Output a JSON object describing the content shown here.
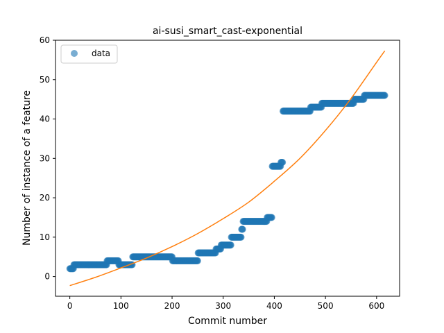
{
  "chart_data": {
    "type": "scatter",
    "title": "ai-susi_smart_cast-exponential",
    "xlabel": "Commit number",
    "ylabel": "Number of instance of a feature",
    "xlim": [
      -28,
      645
    ],
    "ylim": [
      -5,
      60
    ],
    "xticks": [
      0,
      100,
      200,
      300,
      400,
      500,
      600
    ],
    "yticks": [
      0,
      10,
      20,
      30,
      40,
      50,
      60
    ],
    "grid": false,
    "legend": {
      "placement": "top-left",
      "entries": [
        "data"
      ]
    },
    "colors": {
      "data": "#1f77b4",
      "fit": "#ff7f0e"
    },
    "series": [
      {
        "name": "data",
        "kind": "scatter",
        "segments": [
          {
            "x_start": 0,
            "x_end": 7,
            "y": 2
          },
          {
            "x_start": 8,
            "x_end": 72,
            "y": 3
          },
          {
            "x_start": 73,
            "x_end": 95,
            "y": 4
          },
          {
            "x_start": 96,
            "x_end": 122,
            "y": 3
          },
          {
            "x_start": 123,
            "x_end": 200,
            "y": 5
          },
          {
            "x_start": 201,
            "x_end": 250,
            "y": 4
          },
          {
            "x_start": 251,
            "x_end": 285,
            "y": 6
          },
          {
            "x_start": 286,
            "x_end": 295,
            "y": 7
          },
          {
            "x_start": 296,
            "x_end": 315,
            "y": 8
          },
          {
            "x_start": 316,
            "x_end": 335,
            "y": 10
          },
          {
            "x_start": 336,
            "x_end": 338,
            "y": 12
          },
          {
            "x_start": 339,
            "x_end": 385,
            "y": 14
          },
          {
            "x_start": 386,
            "x_end": 395,
            "y": 15
          },
          {
            "x_start": 396,
            "x_end": 412,
            "y": 28
          },
          {
            "x_start": 413,
            "x_end": 416,
            "y": 29
          },
          {
            "x_start": 417,
            "x_end": 470,
            "y": 42
          },
          {
            "x_start": 471,
            "x_end": 492,
            "y": 43
          },
          {
            "x_start": 493,
            "x_end": 555,
            "y": 44
          },
          {
            "x_start": 556,
            "x_end": 575,
            "y": 45
          },
          {
            "x_start": 576,
            "x_end": 616,
            "y": 46
          }
        ]
      },
      {
        "kind": "line",
        "x": [
          0,
          50,
          100,
          150,
          200,
          250,
          300,
          350,
          400,
          450,
          500,
          550,
          600,
          616
        ],
        "y": [
          -2.3,
          -0.2,
          2.2,
          4.7,
          7.6,
          10.9,
          14.7,
          18.9,
          24.2,
          30.0,
          37.1,
          45.2,
          54.4,
          57.3
        ]
      }
    ]
  }
}
